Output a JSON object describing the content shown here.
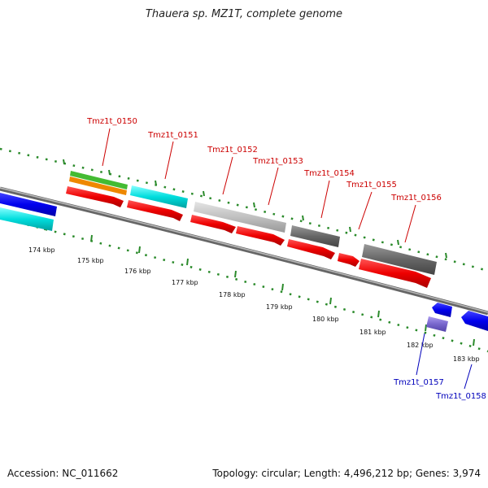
{
  "title": "Thauera sp. MZ1T, complete genome",
  "footer": {
    "accession": "Accession: NC_011662",
    "summary": "Topology: circular; Length: 4,496,212 bp; Genes: 3,974"
  },
  "ruler": {
    "ticks": [
      "174 kbp",
      "175 kbp",
      "176 kbp",
      "177 kbp",
      "178 kbp",
      "179 kbp",
      "180 kbp",
      "181 kbp",
      "182 kbp",
      "183 kbp"
    ]
  },
  "genes": [
    {
      "label": "Tmz1t_0150",
      "color": "#cc0000"
    },
    {
      "label": "Tmz1t_0151",
      "color": "#cc0000"
    },
    {
      "label": "Tmz1t_0152",
      "color": "#cc0000"
    },
    {
      "label": "Tmz1t_0153",
      "color": "#cc0000"
    },
    {
      "label": "Tmz1t_0154",
      "color": "#cc0000"
    },
    {
      "label": "Tmz1t_0155",
      "color": "#cc0000"
    },
    {
      "label": "Tmz1t_0156",
      "color": "#cc0000"
    },
    {
      "label": "Tmz1t_0157",
      "color": "#0000bb"
    },
    {
      "label": "Tmz1t_0158",
      "color": "#0000bb"
    }
  ],
  "colors": {
    "forward_cds": "#ee0000",
    "reverse_cds": "#0000ee",
    "backbone": "#888888",
    "ticks": "#228b22",
    "cyan_feature": "#00cccc",
    "green_feature": "#44bb33",
    "orange_feature": "#ee8800",
    "light_gray_feature": "#c0c0c0",
    "dark_gray_feature": "#666666",
    "purple_feature": "#7766cc"
  }
}
